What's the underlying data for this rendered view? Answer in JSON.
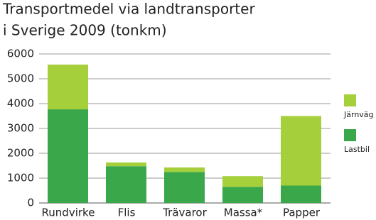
{
  "chart_data": {
    "type": "stacked-bar",
    "title": [
      "Transportmedel via landtransporter",
      "i Sverige 2009 (tonkm)"
    ],
    "categories": [
      "Rundvirke",
      "Flis",
      "Trävaror",
      "Massa*",
      "Papper"
    ],
    "series": [
      {
        "name": "Lastbil",
        "color": "#3aa84a",
        "values": [
          3770,
          1480,
          1250,
          650,
          700
        ]
      },
      {
        "name": "Järnväg",
        "color": "#a6cf3c",
        "values": [
          1800,
          150,
          180,
          430,
          2800
        ]
      }
    ],
    "ylim": [
      0,
      6000
    ],
    "yticks": [
      0,
      1000,
      2000,
      3000,
      4000,
      5000,
      6000
    ],
    "grid": true
  }
}
